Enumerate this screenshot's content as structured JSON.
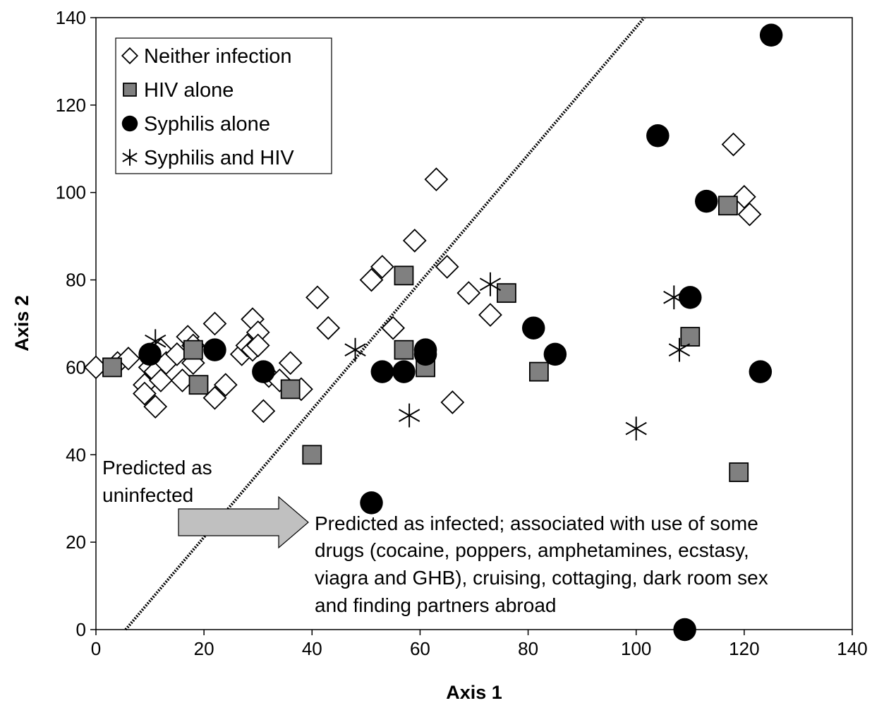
{
  "chart_data": {
    "type": "scatter",
    "title": "",
    "xlabel": "Axis 1",
    "ylabel": "Axis 2",
    "xlim": [
      0,
      140
    ],
    "ylim": [
      0,
      140
    ],
    "xticks": [
      0,
      20,
      40,
      60,
      80,
      100,
      120,
      140
    ],
    "yticks": [
      0,
      20,
      40,
      60,
      80,
      100,
      120,
      140
    ],
    "grid": false,
    "legend_position": "top-left",
    "series": [
      {
        "name": "Neither infection",
        "marker": "diamond-open",
        "points": [
          [
            0,
            60
          ],
          [
            4,
            61
          ],
          [
            6,
            62
          ],
          [
            9,
            56
          ],
          [
            9,
            54
          ],
          [
            10,
            60
          ],
          [
            11,
            51
          ],
          [
            11,
            59
          ],
          [
            12,
            64
          ],
          [
            12,
            57
          ],
          [
            13,
            61
          ],
          [
            15,
            63
          ],
          [
            16,
            57
          ],
          [
            17,
            67
          ],
          [
            18,
            61
          ],
          [
            18,
            65
          ],
          [
            22,
            70
          ],
          [
            22,
            53
          ],
          [
            24,
            56
          ],
          [
            27,
            63
          ],
          [
            28,
            65
          ],
          [
            29,
            64
          ],
          [
            29,
            71
          ],
          [
            30,
            68
          ],
          [
            30,
            65
          ],
          [
            31,
            50
          ],
          [
            32,
            58
          ],
          [
            34,
            57
          ],
          [
            36,
            61
          ],
          [
            38,
            55
          ],
          [
            41,
            76
          ],
          [
            43,
            69
          ],
          [
            51,
            80
          ],
          [
            53,
            83
          ],
          [
            55,
            69
          ],
          [
            59,
            89
          ],
          [
            63,
            103
          ],
          [
            65,
            83
          ],
          [
            66,
            52
          ],
          [
            69,
            77
          ],
          [
            73,
            72
          ],
          [
            118,
            111
          ],
          [
            120,
            99
          ],
          [
            121,
            95
          ]
        ]
      },
      {
        "name": "HIV alone",
        "marker": "square-gray",
        "points": [
          [
            3,
            60
          ],
          [
            18,
            64
          ],
          [
            19,
            56
          ],
          [
            36,
            55
          ],
          [
            40,
            40
          ],
          [
            57,
            81
          ],
          [
            57,
            64
          ],
          [
            61,
            60
          ],
          [
            76,
            77
          ],
          [
            82,
            59
          ],
          [
            117,
            97
          ],
          [
            110,
            67
          ],
          [
            119,
            36
          ]
        ]
      },
      {
        "name": "Syphilis alone",
        "marker": "circle-filled",
        "points": [
          [
            10,
            63
          ],
          [
            22,
            64
          ],
          [
            31,
            59
          ],
          [
            51,
            29
          ],
          [
            53,
            59
          ],
          [
            57,
            59
          ],
          [
            61,
            64
          ],
          [
            61,
            63
          ],
          [
            81,
            69
          ],
          [
            85,
            63
          ],
          [
            104,
            113
          ],
          [
            109,
            0
          ],
          [
            110,
            76
          ],
          [
            113,
            98
          ],
          [
            123,
            59
          ],
          [
            125,
            136
          ]
        ]
      },
      {
        "name": "Syphilis and HIV",
        "marker": "asterisk",
        "points": [
          [
            11,
            66
          ],
          [
            48,
            64
          ],
          [
            58,
            49
          ],
          [
            73,
            79
          ],
          [
            100,
            46
          ],
          [
            107,
            76
          ],
          [
            108,
            64
          ]
        ]
      }
    ],
    "separator_line": {
      "from": [
        5.5,
        0
      ],
      "to": [
        101.5,
        140
      ]
    },
    "annotations": {
      "left": [
        "Predicted as",
        "uninfected"
      ],
      "right": [
        "Predicted as infected; associated with use of some",
        "drugs (cocaine, poppers, amphetamines, ecstasy,",
        "viagra and GHB), cruising, cottaging, dark room sex",
        "and finding partners abroad"
      ]
    },
    "colors": {
      "hiv_fill": "#808080",
      "arrow_fill": "#c0c0c0",
      "marker_stroke": "#000000"
    }
  }
}
